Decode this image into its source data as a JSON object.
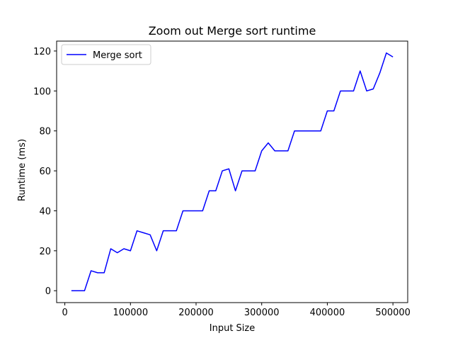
{
  "chart_data": {
    "type": "line",
    "title": "Zoom out Merge sort runtime",
    "xlabel": "Input Size",
    "ylabel": "Runtime (ms)",
    "xlim": [
      -12500,
      522500
    ],
    "ylim": [
      -5.95,
      124.95
    ],
    "xticks": [
      0,
      100000,
      200000,
      300000,
      400000,
      500000
    ],
    "xtick_labels": [
      "0",
      "100000",
      "200000",
      "300000",
      "400000",
      "500000"
    ],
    "yticks": [
      0,
      20,
      40,
      60,
      80,
      100,
      120
    ],
    "ytick_labels": [
      "0",
      "20",
      "40",
      "60",
      "80",
      "100",
      "120"
    ],
    "grid": false,
    "legend": "upper left",
    "series": [
      {
        "name": "Merge sort",
        "color": "#0000ff",
        "x": [
          10000,
          20000,
          30000,
          40000,
          50000,
          60000,
          70000,
          80000,
          90000,
          100000,
          110000,
          120000,
          130000,
          140000,
          150000,
          160000,
          170000,
          180000,
          190000,
          200000,
          210000,
          220000,
          230000,
          240000,
          250000,
          260000,
          270000,
          280000,
          290000,
          300000,
          310000,
          320000,
          330000,
          340000,
          350000,
          360000,
          370000,
          380000,
          390000,
          400000,
          410000,
          420000,
          430000,
          440000,
          450000,
          460000,
          470000,
          480000,
          490000,
          500000
        ],
        "y": [
          0,
          0,
          0,
          10,
          9,
          9,
          21,
          19,
          21,
          20,
          30,
          29,
          28,
          20,
          30,
          30,
          30,
          40,
          40,
          40,
          40,
          50,
          50,
          60,
          61,
          50,
          60,
          60,
          60,
          70,
          74,
          70,
          70,
          70,
          80,
          80,
          80,
          80,
          80,
          90,
          90,
          100,
          100,
          100,
          110,
          100,
          101,
          109,
          119,
          117
        ]
      }
    ]
  }
}
